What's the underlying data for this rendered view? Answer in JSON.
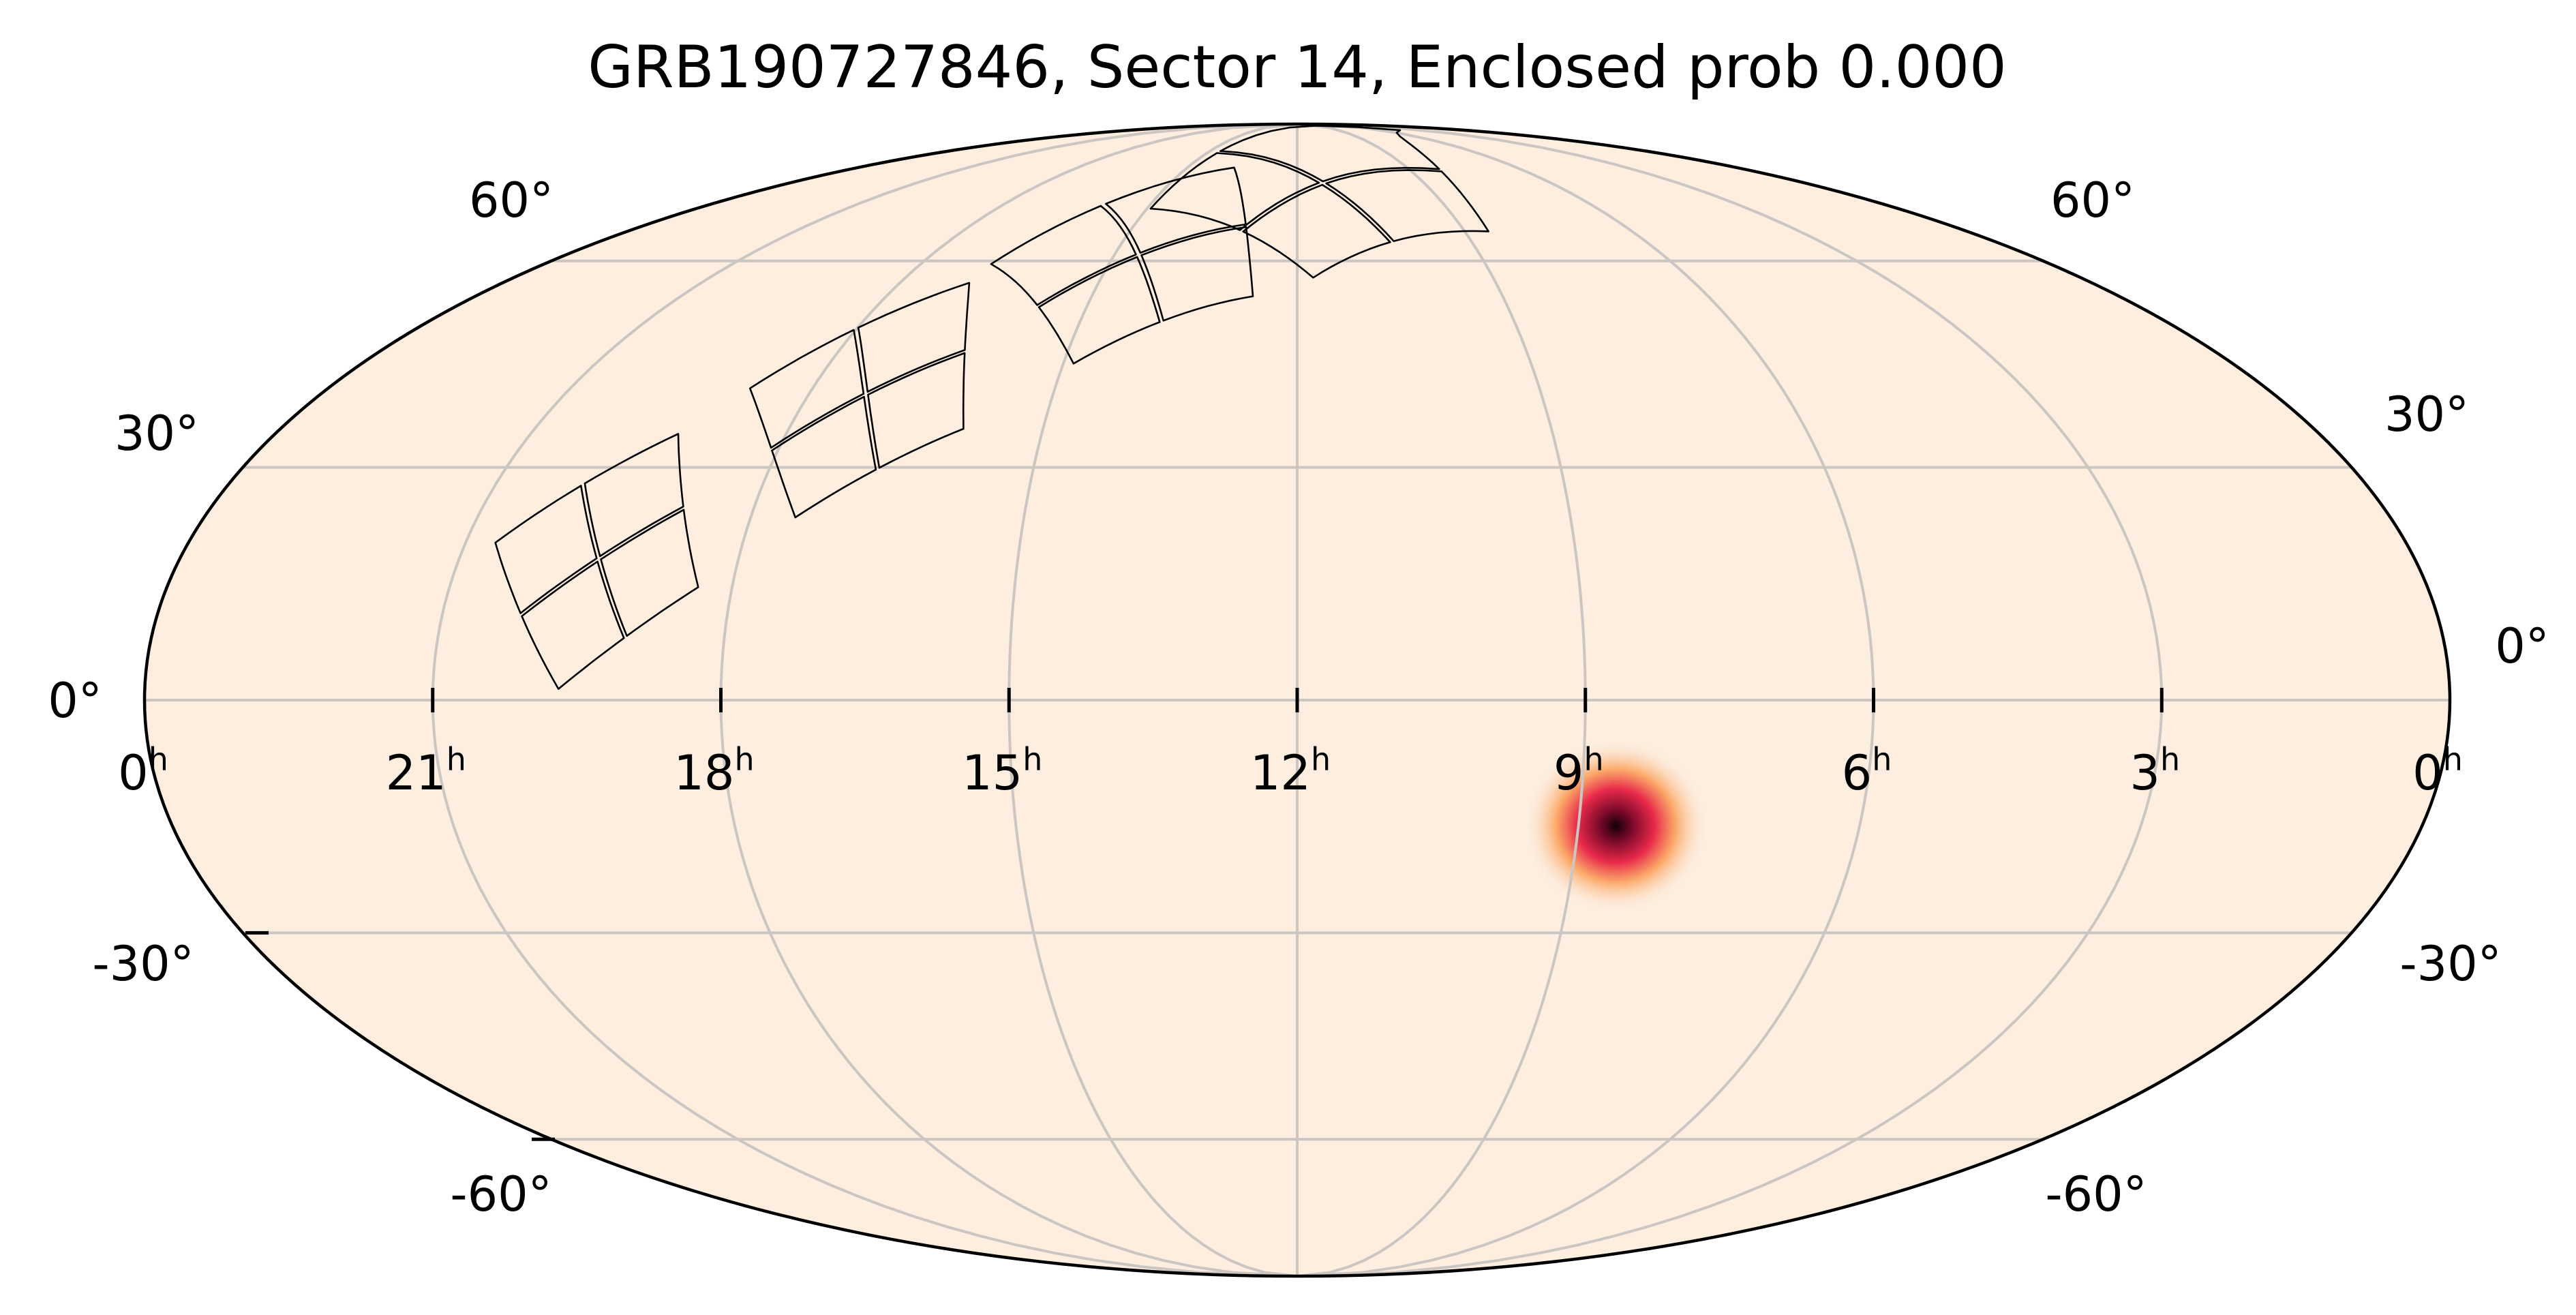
{
  "chart_data": {
    "type": "heatmap",
    "projection": "mollweide",
    "title": "GRB190727846, Sector 14, Enclosed prob 0.000",
    "ra_tick_labels": [
      {
        "ra_h": 24,
        "text": "0",
        "sup": "h"
      },
      {
        "ra_h": 21,
        "text": "21",
        "sup": "h"
      },
      {
        "ra_h": 18,
        "text": "18",
        "sup": "h"
      },
      {
        "ra_h": 15,
        "text": "15",
        "sup": "h"
      },
      {
        "ra_h": 12,
        "text": "12",
        "sup": "h"
      },
      {
        "ra_h": 9,
        "text": "9",
        "sup": "h"
      },
      {
        "ra_h": 6,
        "text": "6",
        "sup": "h"
      },
      {
        "ra_h": 3,
        "text": "3",
        "sup": "h"
      },
      {
        "ra_h": 0,
        "text": "0",
        "sup": "h"
      }
    ],
    "dec_tick_labels": [
      {
        "dec": 60,
        "text": "60°"
      },
      {
        "dec": 30,
        "text": "30°"
      },
      {
        "dec": 0,
        "text": "0°"
      },
      {
        "dec": -30,
        "text": "-30°"
      },
      {
        "dec": -60,
        "text": "-60°"
      }
    ],
    "ra_gridlines_h": [
      21,
      18,
      15,
      12,
      9,
      6,
      3
    ],
    "dec_gridlines": [
      60,
      30,
      0,
      -30,
      -60
    ],
    "grid": true,
    "colormap": "light peach to crimson to black",
    "background_color": "#fdeee0",
    "probability_peak": {
      "ra_h": 8.6,
      "dec": -16,
      "sigma_deg": 4
    },
    "colors": {
      "low": "#fdeee0",
      "mid_low": "#fba25c",
      "mid": "#e8294a",
      "high": "#7a0a2a",
      "peak": "#140008"
    },
    "sector_footprint": {
      "label": "Sector 14",
      "n_cameras": 4,
      "ccds_per_camera": 4,
      "camera_centers": [
        {
          "ra_h": 19.5,
          "dec": 18
        },
        {
          "ra_h": 17.3,
          "dec": 40
        },
        {
          "ra_h": 14.6,
          "dec": 61
        },
        {
          "ra_h": 11.4,
          "dec": 74
        }
      ],
      "ccd_size_deg": [
        12,
        12
      ]
    }
  }
}
